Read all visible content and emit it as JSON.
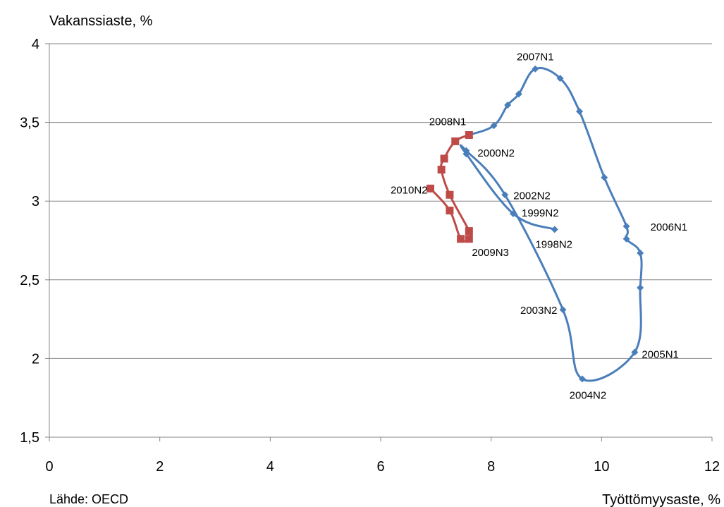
{
  "source_label": "Lähde: OECD",
  "chart_data": {
    "type": "scatter",
    "title": "",
    "ylabel": "Vakanssiaste, %",
    "xlabel": "Työttömyysaste, %",
    "xlim": [
      0,
      12
    ],
    "ylim": [
      1.5,
      4
    ],
    "x_ticks": [
      0,
      2,
      4,
      6,
      8,
      10,
      12
    ],
    "y_ticks": [
      1.5,
      2,
      2.5,
      3,
      3.5,
      4
    ],
    "x_tick_labels": [
      "0",
      "2",
      "4",
      "6",
      "8",
      "10",
      "12"
    ],
    "y_tick_labels": [
      "1,5",
      "2",
      "2,5",
      "3",
      "3,5",
      "4"
    ],
    "grid": "horizontal",
    "legend": "none",
    "series": [
      {
        "color": "#4a7ebb",
        "marker": "diamond",
        "points": [
          {
            "x": 9.15,
            "y": 2.82,
            "label": "1998N2"
          },
          {
            "x": 8.4,
            "y": 2.92,
            "label": "1999N2"
          },
          {
            "x": 7.55,
            "y": 3.3
          },
          {
            "x": 7.55,
            "y": 3.32,
            "label": "2000N2"
          },
          {
            "x": 8.25,
            "y": 3.04,
            "label": "2002N2"
          },
          {
            "x": 9.3,
            "y": 2.31,
            "label": "2003N2"
          },
          {
            "x": 9.65,
            "y": 1.87,
            "label": "2004N2"
          },
          {
            "x": 10.6,
            "y": 2.04,
            "label": "2005N1"
          },
          {
            "x": 10.7,
            "y": 2.45
          },
          {
            "x": 10.7,
            "y": 2.67
          },
          {
            "x": 10.45,
            "y": 2.76
          },
          {
            "x": 10.45,
            "y": 2.84,
            "label": "2006N1"
          },
          {
            "x": 10.05,
            "y": 3.15
          },
          {
            "x": 9.6,
            "y": 3.57
          },
          {
            "x": 9.25,
            "y": 3.78
          },
          {
            "x": 8.8,
            "y": 3.84,
            "label": "2007N1"
          },
          {
            "x": 8.5,
            "y": 3.68
          },
          {
            "x": 8.3,
            "y": 3.61
          },
          {
            "x": 8.05,
            "y": 3.48
          },
          {
            "x": 7.6,
            "y": 3.42
          }
        ]
      },
      {
        "color": "#be4b48",
        "marker": "square",
        "points": [
          {
            "x": 7.6,
            "y": 3.42,
            "label": "2008N1"
          },
          {
            "x": 7.35,
            "y": 3.38
          },
          {
            "x": 7.15,
            "y": 3.27
          },
          {
            "x": 7.1,
            "y": 3.2
          },
          {
            "x": 7.25,
            "y": 3.04
          },
          {
            "x": 7.6,
            "y": 2.81
          },
          {
            "x": 7.6,
            "y": 2.76,
            "label": "2009N3"
          },
          {
            "x": 7.45,
            "y": 2.76
          },
          {
            "x": 7.25,
            "y": 2.94
          },
          {
            "x": 6.9,
            "y": 3.08,
            "label": "2010N2"
          }
        ]
      }
    ]
  }
}
